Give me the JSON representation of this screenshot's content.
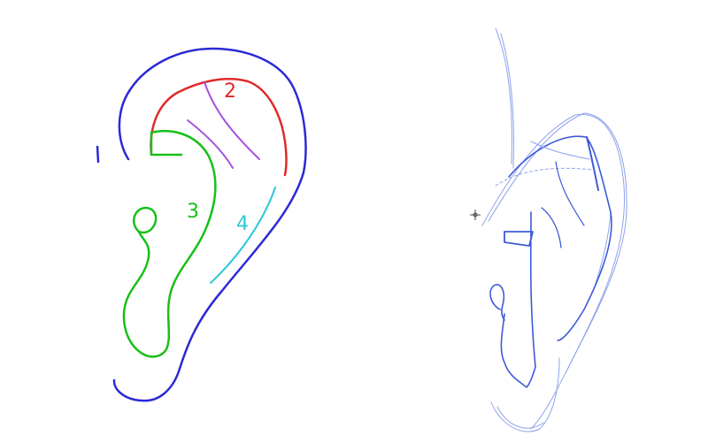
{
  "labels": {
    "region_1": "1",
    "region_2": "2",
    "region_3": "3",
    "region_4": "4"
  },
  "colors": {
    "outer_rim": "#2a2ad6",
    "helix": "#e02a2a",
    "helix_inner": "#a650e0",
    "antihelix": "#18c018",
    "antihelix_inner": "#2ac8d8",
    "sketch": "#3d5bd9",
    "sketch_light": "#8ea2ea"
  },
  "icons": {
    "cursor": "crosshair-cursor-icon"
  }
}
